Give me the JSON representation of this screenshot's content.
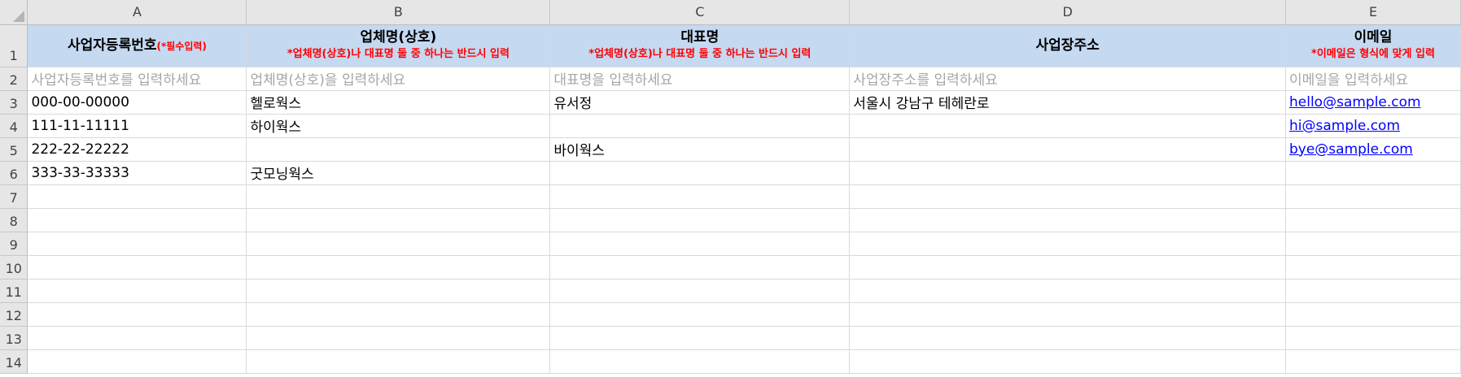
{
  "columns": [
    "A",
    "B",
    "C",
    "D",
    "E"
  ],
  "row_numbers": [
    "1",
    "2",
    "3",
    "4",
    "5",
    "6",
    "7",
    "8",
    "9",
    "10",
    "11",
    "12",
    "13",
    "14"
  ],
  "header": {
    "a_title": "사업자등록번호",
    "a_note": "(*필수입력)",
    "b_title": "업체명(상호)",
    "b_note": "*업체명(상호)나 대표명 둘 중 하나는 반드시 입력",
    "c_title": "대표명",
    "c_note": "*업체명(상호)나 대표명 둘 중 하나는 반드시 입력",
    "d_title": "사업장주소",
    "e_title": "이메일",
    "e_note": "*이메일은 형식에 맞게 입력"
  },
  "placeholders": {
    "a": "사업자등록번호를 입력하세요",
    "b": "업체명(상호)을 입력하세요",
    "c": "대표명을 입력하세요",
    "d": "사업장주소를 입력하세요",
    "e": "이메일을 입력하세요"
  },
  "rows": [
    {
      "a": "000-00-00000",
      "b": "헬로웍스",
      "c": "유서정",
      "d": "서울시 강남구 테헤란로",
      "e": "hello@sample.com"
    },
    {
      "a": "111-11-11111",
      "b": "하이웍스",
      "c": "",
      "d": "",
      "e": "hi@sample.com"
    },
    {
      "a": "222-22-22222",
      "b": "",
      "c": "바이웍스",
      "d": "",
      "e": "bye@sample.com"
    },
    {
      "a": "333-33-33333",
      "b": "굿모닝웍스",
      "c": "",
      "d": "",
      "e": ""
    }
  ],
  "colors": {
    "header_fill": "#c5d9f1",
    "note_text": "#ff0000",
    "placeholder_text": "#a6a6a6",
    "link_text": "#0000ff"
  }
}
